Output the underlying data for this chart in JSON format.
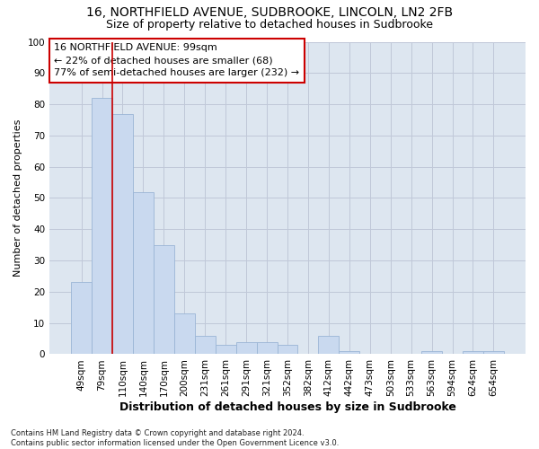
{
  "title1": "16, NORTHFIELD AVENUE, SUDBROOKE, LINCOLN, LN2 2FB",
  "title2": "Size of property relative to detached houses in Sudbrooke",
  "xlabel": "Distribution of detached houses by size in Sudbrooke",
  "ylabel": "Number of detached properties",
  "categories": [
    "49sqm",
    "79sqm",
    "110sqm",
    "140sqm",
    "170sqm",
    "200sqm",
    "231sqm",
    "261sqm",
    "291sqm",
    "321sqm",
    "352sqm",
    "382sqm",
    "412sqm",
    "442sqm",
    "473sqm",
    "503sqm",
    "533sqm",
    "563sqm",
    "594sqm",
    "624sqm",
    "654sqm"
  ],
  "values": [
    23,
    82,
    77,
    52,
    35,
    13,
    6,
    3,
    4,
    4,
    3,
    0,
    6,
    1,
    0,
    0,
    0,
    1,
    0,
    1,
    1
  ],
  "bar_color": "#c9d9ef",
  "bar_edge_color": "#9ab5d5",
  "vline_color": "#cc0000",
  "vline_x": 1.5,
  "annotation_text": "16 NORTHFIELD AVENUE: 99sqm\n← 22% of detached houses are smaller (68)\n77% of semi-detached houses are larger (232) →",
  "annotation_box_color": "#ffffff",
  "annotation_box_edge": "#cc0000",
  "ylim": [
    0,
    100
  ],
  "yticks": [
    0,
    10,
    20,
    30,
    40,
    50,
    60,
    70,
    80,
    90,
    100
  ],
  "grid_color": "#c0c8d8",
  "bg_color": "#dde6f0",
  "footer_text": "Contains HM Land Registry data © Crown copyright and database right 2024.\nContains public sector information licensed under the Open Government Licence v3.0.",
  "title1_fontsize": 10,
  "title2_fontsize": 9,
  "xlabel_fontsize": 9,
  "ylabel_fontsize": 8,
  "tick_fontsize": 7.5,
  "annotation_fontsize": 8,
  "footer_fontsize": 6
}
